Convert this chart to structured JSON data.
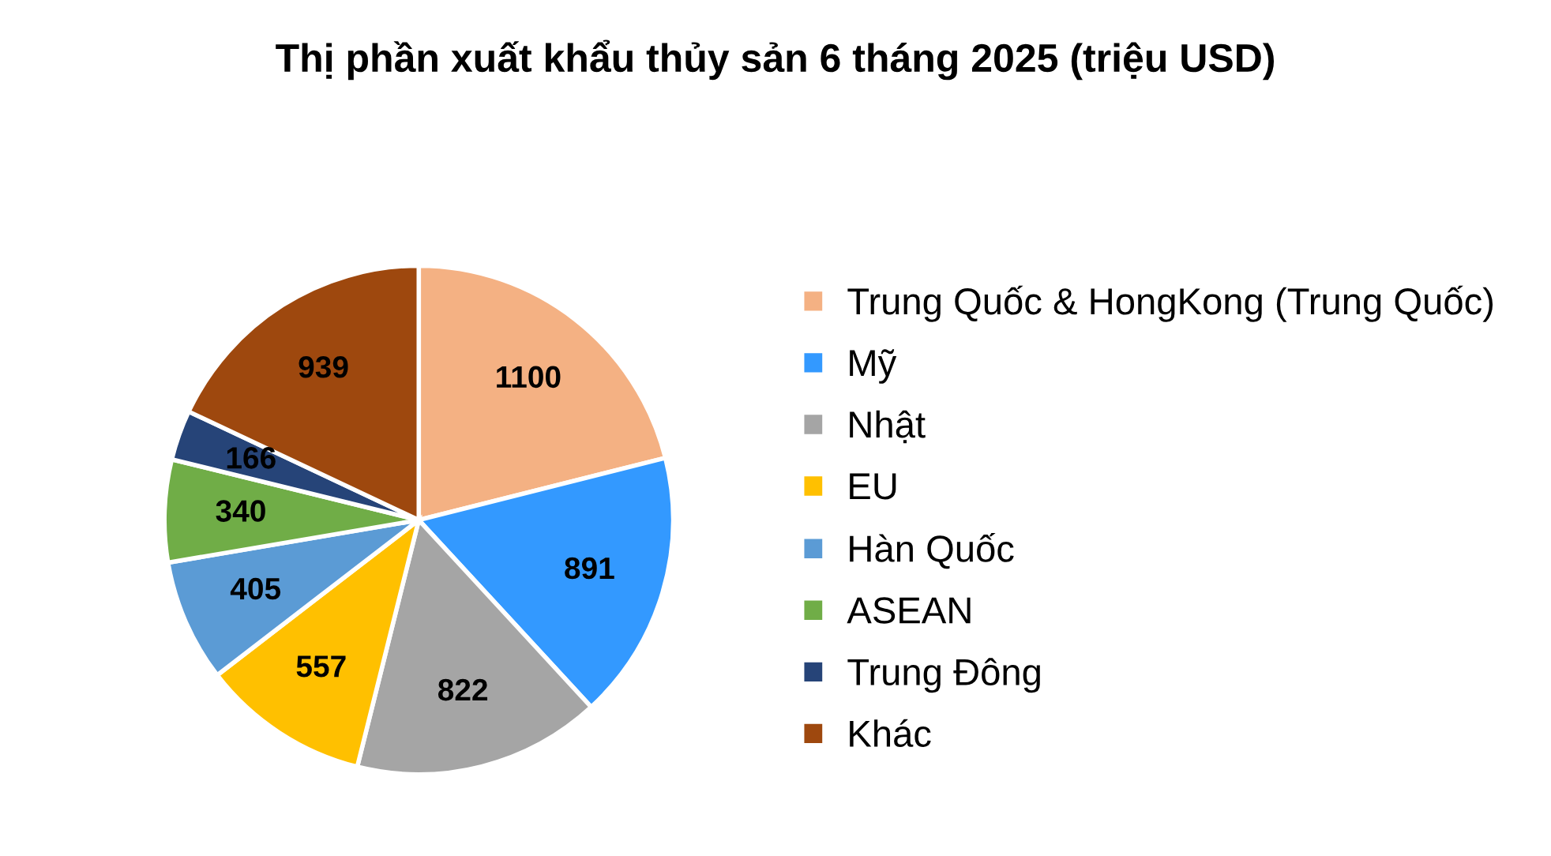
{
  "chart_data": {
    "type": "pie",
    "title": "Thị phần xuất khẩu thủy sản 6 tháng 2025 (triệu USD)",
    "categories": [
      "Trung Quốc & HongKong (Trung Quốc)",
      "Mỹ",
      "Nhật",
      "EU",
      "Hàn Quốc",
      "ASEAN",
      "Trung Đông",
      "Khác"
    ],
    "values": [
      1100,
      891,
      822,
      557,
      405,
      340,
      166,
      939
    ],
    "colors": [
      "#f4b183",
      "#3399ff",
      "#a5a5a5",
      "#ffc000",
      "#5b9bd5",
      "#70ad47",
      "#264478",
      "#9e480e"
    ],
    "data_labels": true,
    "legend": "right"
  }
}
